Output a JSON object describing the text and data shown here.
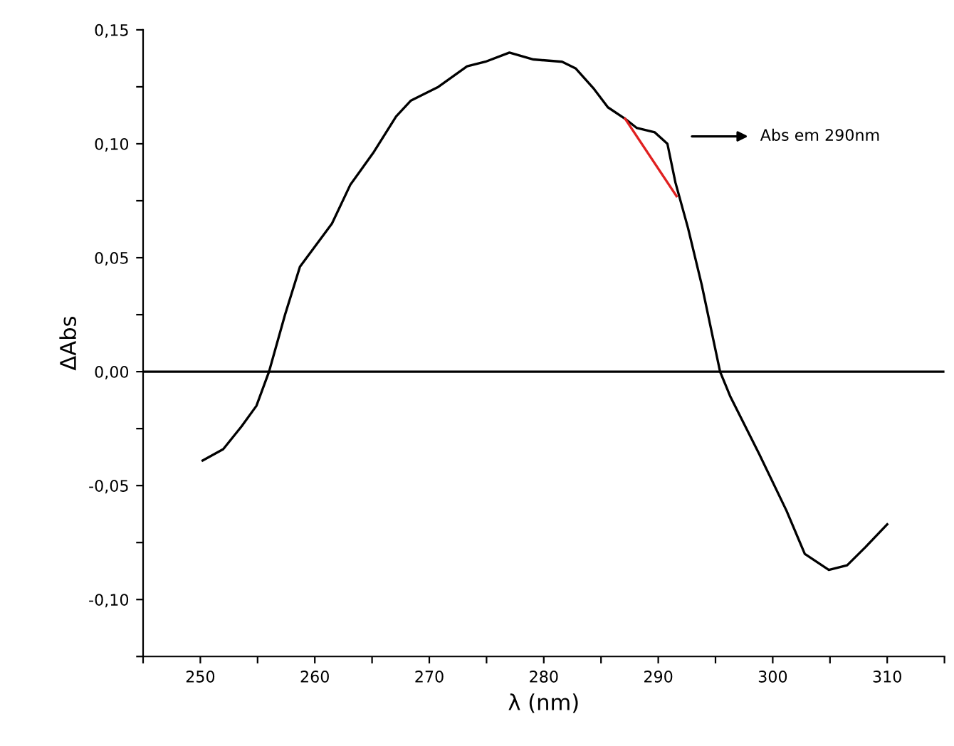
{
  "chart_data": {
    "type": "line",
    "xlabel": "λ (nm)",
    "ylabel": "ΔAbs",
    "xlim": [
      245,
      315
    ],
    "ylim": [
      -0.125,
      0.15
    ],
    "xticks": [
      {
        "value": 245,
        "label": null
      },
      250,
      {
        "value": 255,
        "label": null
      },
      260,
      {
        "value": 265,
        "label": null
      },
      270,
      {
        "value": 275,
        "label": null
      },
      280,
      {
        "value": 285,
        "label": null
      },
      290,
      {
        "value": 295,
        "label": null
      },
      300,
      {
        "value": 305,
        "label": null
      },
      310,
      {
        "value": 315,
        "label": null
      }
    ],
    "yticks": [
      {
        "value": -0.125,
        "label": null
      },
      {
        "value": -0.1,
        "label": "-0,10"
      },
      {
        "value": -0.075,
        "label": null
      },
      {
        "value": -0.05,
        "label": "-0,05"
      },
      {
        "value": -0.025,
        "label": null
      },
      {
        "value": 0,
        "label": "0,00"
      },
      {
        "value": 0.025,
        "label": null
      },
      {
        "value": 0.05,
        "label": "0,05"
      },
      {
        "value": 0.075,
        "label": null
      },
      {
        "value": 0.1,
        "label": "0,10"
      },
      {
        "value": 0.125,
        "label": null
      },
      {
        "value": 0.15,
        "label": "0,15"
      }
    ],
    "series": [
      {
        "color": "#000000",
        "x": [
          250.2,
          252,
          253.6,
          254.9,
          256,
          257.4,
          258.7,
          261.5,
          263.1,
          265.1,
          267.1,
          268.4,
          270.8,
          273.3,
          274.9,
          277,
          279.1,
          281.6,
          282.8,
          284.4,
          285.6,
          287.1,
          288.1,
          289.7,
          290.8,
          291.5,
          292.6,
          293.8,
          295.4,
          296.3,
          298.8,
          301.2,
          302.8,
          304.9,
          306.5,
          308.1,
          310
        ],
        "values": [
          -0.039,
          -0.034,
          -0.024,
          -0.015,
          0,
          0.025,
          0.046,
          0.065,
          0.082,
          0.096,
          0.112,
          0.119,
          0.125,
          0.134,
          0.136,
          0.14,
          0.137,
          0.136,
          0.133,
          0.124,
          0.116,
          0.111,
          0.107,
          0.105,
          0.1,
          0.083,
          0.063,
          0.038,
          0,
          -0.011,
          -0.036,
          -0.061,
          -0.08,
          -0.087,
          -0.085,
          -0.077,
          -0.067
        ]
      },
      {
        "color": "#e02020",
        "x": [
          287.1,
          291.6
        ],
        "values": [
          0.111,
          0.077
        ]
      }
    ],
    "ref_lines": [
      {
        "axis": "y",
        "value": 0,
        "color": "#000000"
      }
    ],
    "annotations": [
      "Abs em 290nm"
    ],
    "grid": false,
    "legend": false
  }
}
